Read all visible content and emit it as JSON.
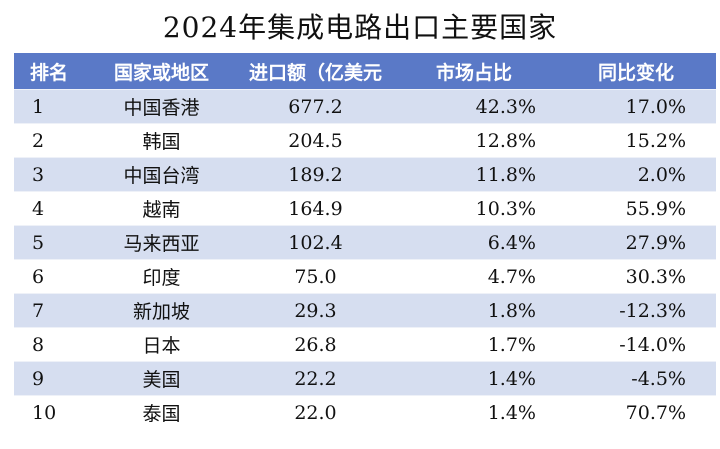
{
  "title": "2024年集成电路出口主要国家",
  "table": {
    "headers": [
      "排名",
      "国家或地区",
      "进口额（亿美元",
      "市场占比",
      "同比变化"
    ],
    "rows": [
      {
        "rank": "1",
        "region": "中国香港",
        "amount": "677.2",
        "share": "42.3%",
        "change": "17.0%"
      },
      {
        "rank": "2",
        "region": "韩国",
        "amount": "204.5",
        "share": "12.8%",
        "change": "15.2%"
      },
      {
        "rank": "3",
        "region": "中国台湾",
        "amount": "189.2",
        "share": "11.8%",
        "change": "2.0%"
      },
      {
        "rank": "4",
        "region": "越南",
        "amount": "164.9",
        "share": "10.3%",
        "change": "55.9%"
      },
      {
        "rank": "5",
        "region": "马来西亚",
        "amount": "102.4",
        "share": "6.4%",
        "change": "27.9%"
      },
      {
        "rank": "6",
        "region": "印度",
        "amount": "75.0",
        "share": "4.7%",
        "change": "30.3%"
      },
      {
        "rank": "7",
        "region": "新加坡",
        "amount": "29.3",
        "share": "1.8%",
        "change": "-12.3%"
      },
      {
        "rank": "8",
        "region": "日本",
        "amount": "26.8",
        "share": "1.7%",
        "change": "-14.0%"
      },
      {
        "rank": "9",
        "region": "美国",
        "amount": "22.2",
        "share": "1.4%",
        "change": "-4.5%"
      },
      {
        "rank": "10",
        "region": "泰国",
        "amount": "22.0",
        "share": "1.4%",
        "change": "70.7%"
      }
    ]
  },
  "colors": {
    "header_bg": "#5a79c7",
    "stripe_bg": "#d6def0"
  }
}
